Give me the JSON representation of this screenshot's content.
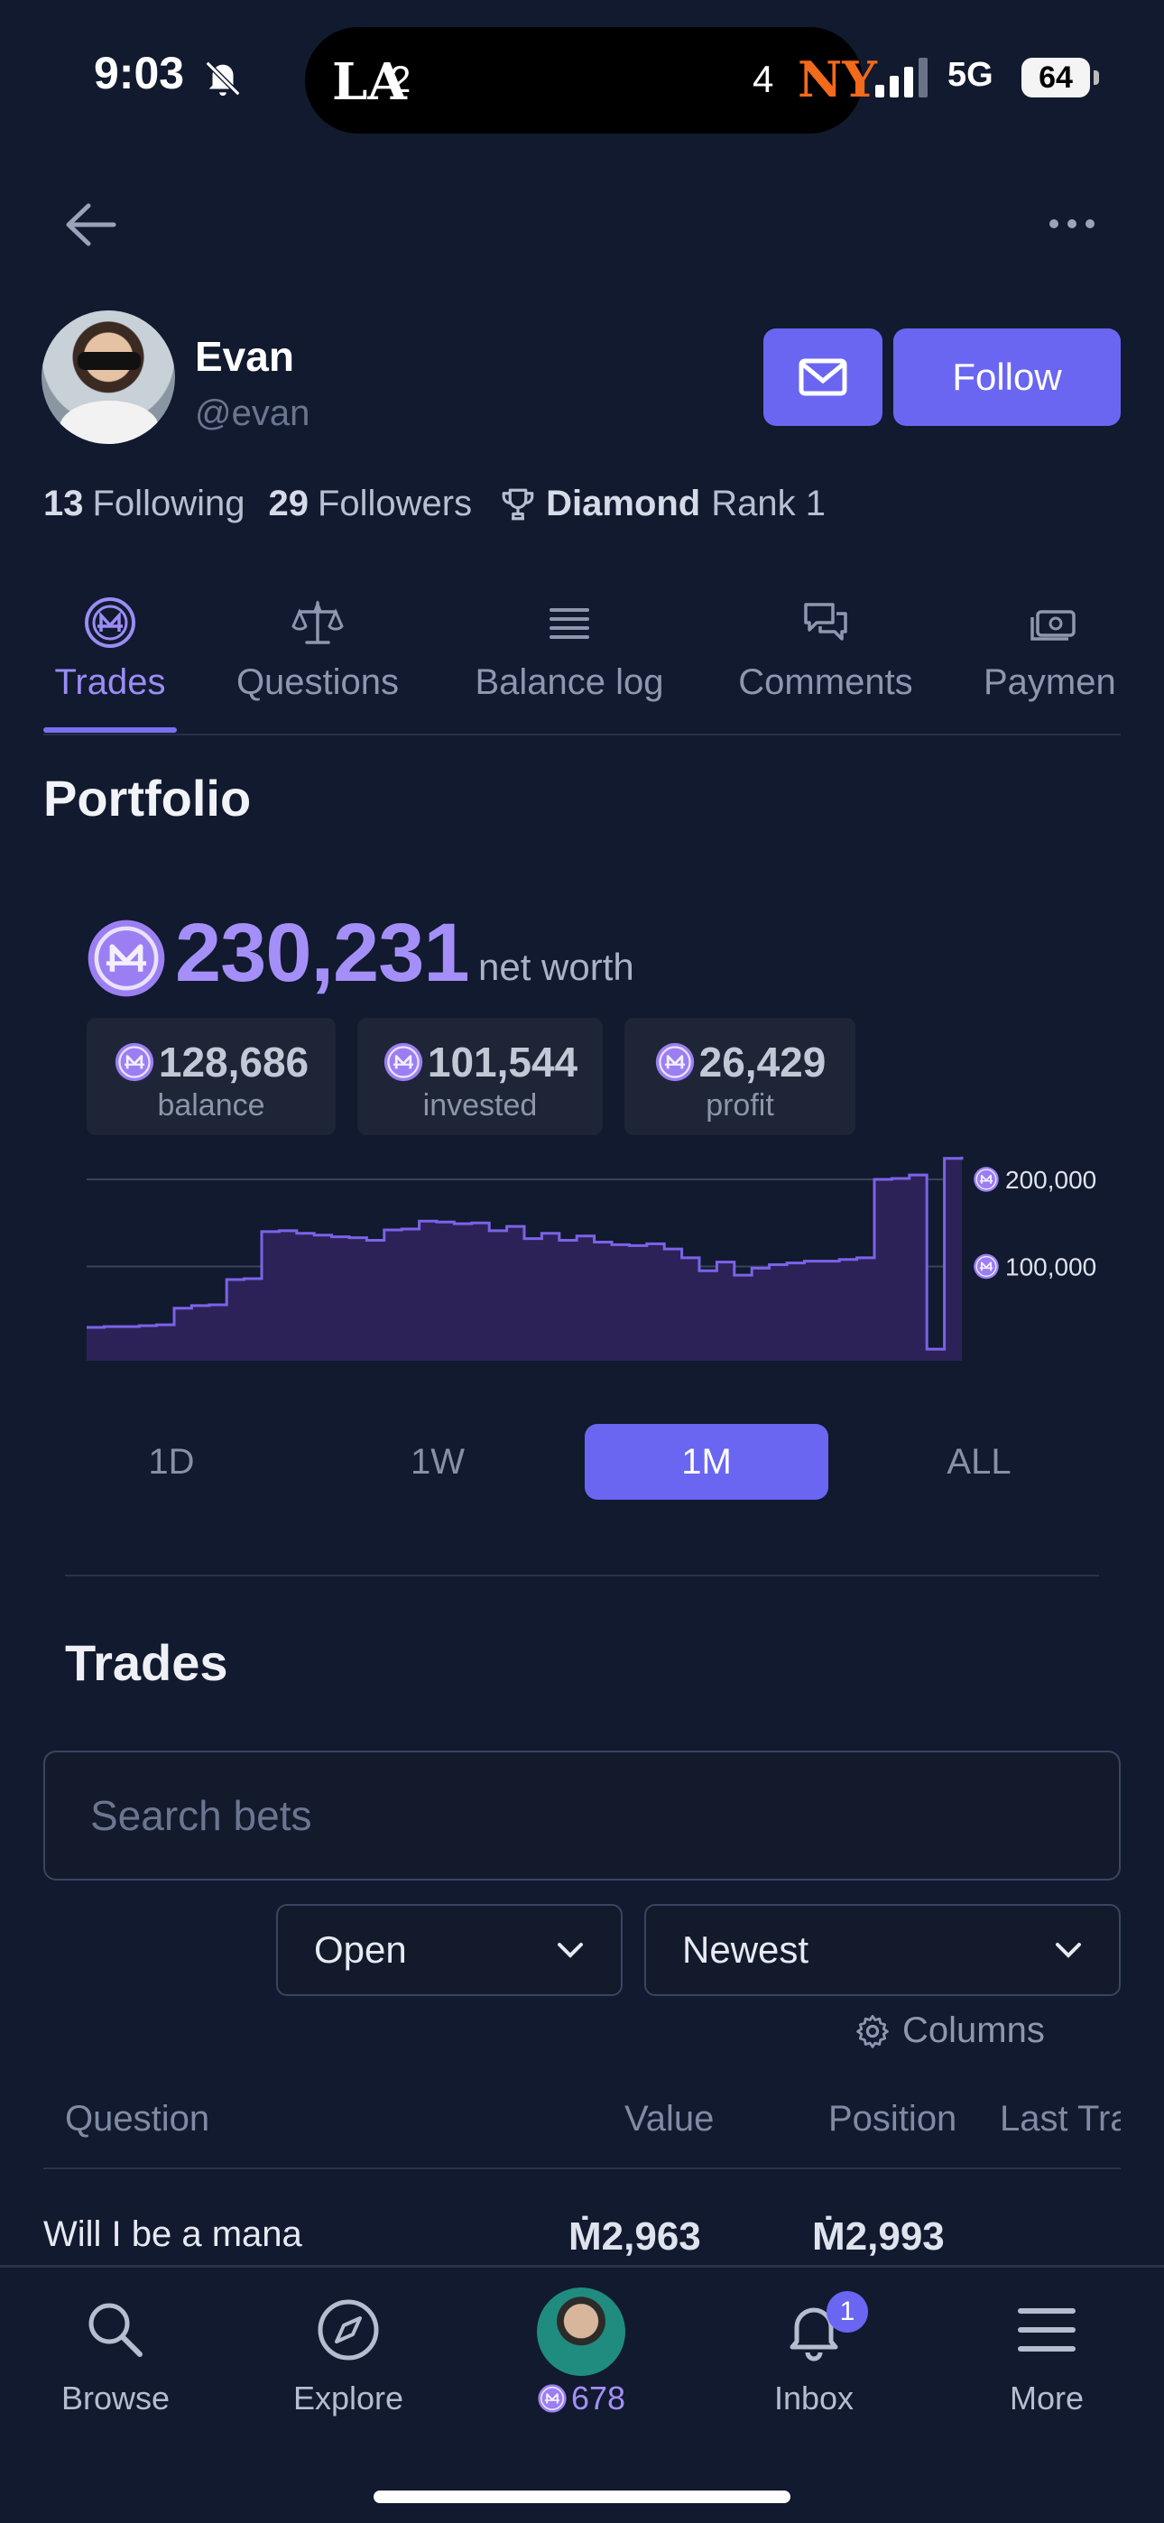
{
  "status_bar": {
    "time": "9:03",
    "score_left": "2",
    "score_right": "4",
    "team_left": "LA",
    "team_right": "NY",
    "network": "5G",
    "battery": "64"
  },
  "profile": {
    "name": "Evan",
    "handle": "@evan",
    "follow_label": "Follow",
    "following_count": "13",
    "following_label": "Following",
    "followers_count": "29",
    "followers_label": "Followers",
    "tier": "Diamond",
    "rank_label": "Rank 1"
  },
  "tabs": [
    {
      "label": "Trades",
      "icon": "mana-coin-icon"
    },
    {
      "label": "Questions",
      "icon": "scale-icon"
    },
    {
      "label": "Balance log",
      "icon": "list-icon"
    },
    {
      "label": "Comments",
      "icon": "chat-icon"
    },
    {
      "label": "Paymen",
      "icon": "cash-icon"
    }
  ],
  "portfolio": {
    "title": "Portfolio",
    "net_worth": "230,231",
    "net_worth_label": "net worth",
    "balance": "128,686",
    "balance_label": "balance",
    "invested": "101,544",
    "invested_label": "invested",
    "profit": "26,429",
    "profit_label": "profit"
  },
  "chart_data": {
    "type": "area",
    "y_ticks": [
      "200,000",
      "100,000"
    ],
    "ylim": [
      0,
      230000
    ],
    "x": [
      0,
      1,
      2,
      3,
      4,
      5,
      6,
      7,
      8,
      9,
      10,
      11,
      12,
      13,
      14,
      15,
      16,
      17,
      18,
      19,
      20,
      21,
      22,
      23,
      24,
      25,
      26,
      27,
      28,
      29,
      30,
      31,
      32,
      33,
      34,
      35,
      36,
      37,
      38,
      39,
      40,
      41,
      42,
      43,
      44,
      45,
      46,
      47,
      48,
      49,
      50
    ],
    "values": [
      30000,
      31000,
      31000,
      32000,
      33000,
      52000,
      55000,
      56000,
      85000,
      86000,
      140000,
      141000,
      138000,
      136000,
      134000,
      133000,
      130000,
      142000,
      143000,
      152000,
      151000,
      149000,
      150000,
      141000,
      146000,
      132000,
      138000,
      130000,
      135000,
      128000,
      125000,
      124000,
      126000,
      120000,
      110000,
      95000,
      105000,
      90000,
      98000,
      102000,
      104000,
      106000,
      106000,
      108000,
      110000,
      200000,
      201000,
      205000,
      5000,
      224000,
      226000
    ],
    "color": "#7b63e8",
    "grid": true
  },
  "ranges": {
    "options": [
      "1D",
      "1W",
      "1M",
      "ALL"
    ],
    "selected": "1M"
  },
  "trades": {
    "title": "Trades",
    "search_placeholder": "Search bets",
    "filter": "Open",
    "sort": "Newest",
    "columns_label": "Columns",
    "headers": [
      "Question",
      "Value",
      "Position",
      "Last Tra"
    ],
    "rows": [
      {
        "question": "Will I be a mana",
        "value": "Ṁ2,963",
        "position": "Ṁ2,993"
      }
    ]
  },
  "nav": {
    "browse": "Browse",
    "explore": "Explore",
    "balance": "678",
    "inbox": "Inbox",
    "inbox_badge": "1",
    "more": "More"
  },
  "colors": {
    "background": "#111a2e",
    "accent": "#6a66f2",
    "mana": "#a48ff8"
  }
}
